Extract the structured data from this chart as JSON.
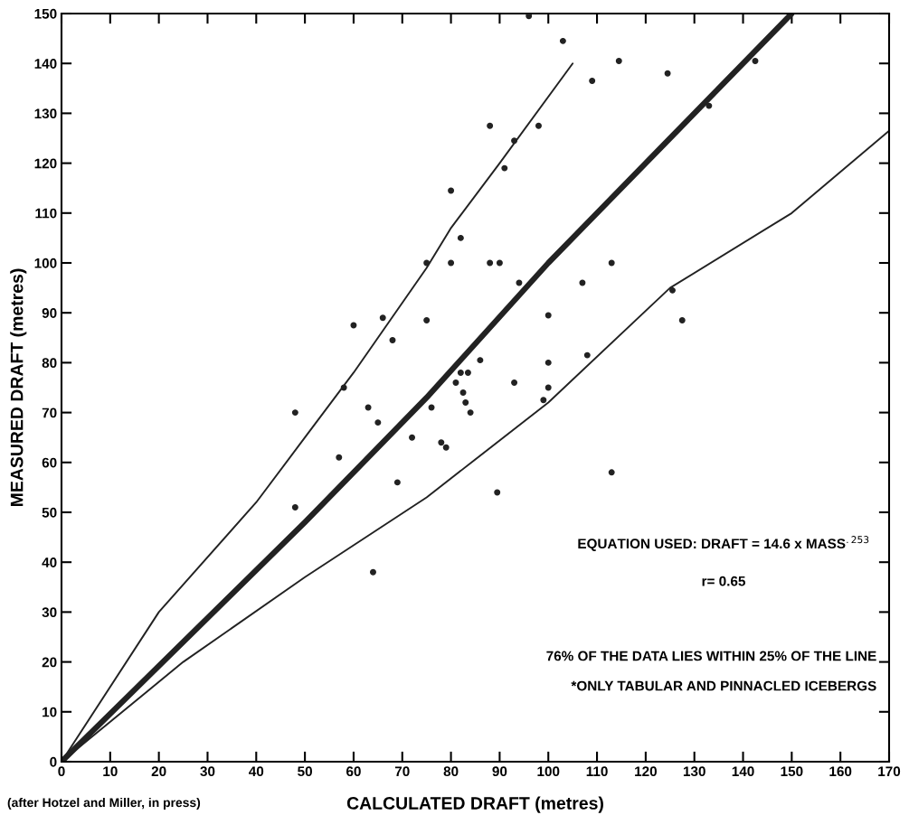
{
  "chart_data": {
    "type": "scatter",
    "xlabel": "CALCULATED DRAFT (metres)",
    "ylabel": "MEASURED DRAFT (metres)",
    "xlim": [
      0,
      170
    ],
    "ylim": [
      0,
      150
    ],
    "xticks": [
      0,
      10,
      20,
      30,
      40,
      50,
      60,
      70,
      80,
      90,
      100,
      110,
      120,
      130,
      140,
      150,
      160,
      170
    ],
    "yticks": [
      0,
      10,
      20,
      30,
      40,
      50,
      60,
      70,
      80,
      90,
      100,
      110,
      120,
      130,
      140,
      150
    ],
    "grid": false,
    "series": [
      {
        "marker": "circle",
        "color": "#222222",
        "x": [
          48,
          48,
          57,
          58,
          60,
          63,
          64,
          65,
          66,
          68,
          69,
          72,
          75,
          75,
          76,
          78,
          79,
          80,
          80,
          81,
          82,
          82,
          82.5,
          83,
          83.5,
          84,
          86,
          88,
          88,
          89.5,
          90,
          91,
          93,
          93,
          94,
          96,
          98,
          99,
          100,
          100,
          100,
          103,
          107,
          108,
          109,
          113,
          113,
          114.5,
          124.5,
          125.5,
          127.5,
          133,
          142.5
        ],
        "values": [
          70,
          51,
          61,
          75,
          87.5,
          71,
          38,
          68,
          89,
          84.5,
          56,
          65,
          100,
          88.5,
          71,
          64,
          63,
          114.5,
          100,
          76,
          78,
          105,
          74,
          72,
          78,
          70,
          80.5,
          127.5,
          100,
          54,
          100,
          119,
          124.5,
          76,
          96,
          149.5,
          127.5,
          72.5,
          75,
          80,
          89.5,
          144.5,
          96,
          81.5,
          136.5,
          100,
          58,
          140.5,
          138,
          94.5,
          88.5,
          131.5,
          140.5
        ]
      },
      {
        "type": "line",
        "marker": "none",
        "color": "#222222",
        "line_style": "solid",
        "x": [
          0,
          25,
          50,
          75,
          100,
          125,
          150
        ],
        "values": [
          0,
          24,
          48,
          73,
          100,
          125,
          150
        ]
      },
      {
        "type": "line",
        "marker": "none",
        "color": "#222222",
        "line_style": "solid",
        "x": [
          0,
          20,
          40,
          50,
          60,
          75,
          80,
          90,
          105
        ],
        "values": [
          0,
          30,
          52,
          65,
          78,
          99,
          107,
          120,
          140
        ]
      },
      {
        "type": "line",
        "marker": "none",
        "color": "#222222",
        "line_style": "solid",
        "x": [
          0,
          25,
          50,
          75,
          100,
          125,
          150,
          170
        ],
        "values": [
          0,
          20,
          37,
          53,
          72,
          95,
          110,
          126.5
        ]
      }
    ],
    "annotations": [
      "EQUATION USED: DRAFT = 14.6 x MASS$^{.253}$",
      "r= 0.65",
      "76% OF THE DATA LIES WITHIN 25% OF THE LINE",
      "*ONLY TABULAR AND PINNACLED ICEBERGS",
      "(after Hotzel and Miller, in press)"
    ]
  }
}
